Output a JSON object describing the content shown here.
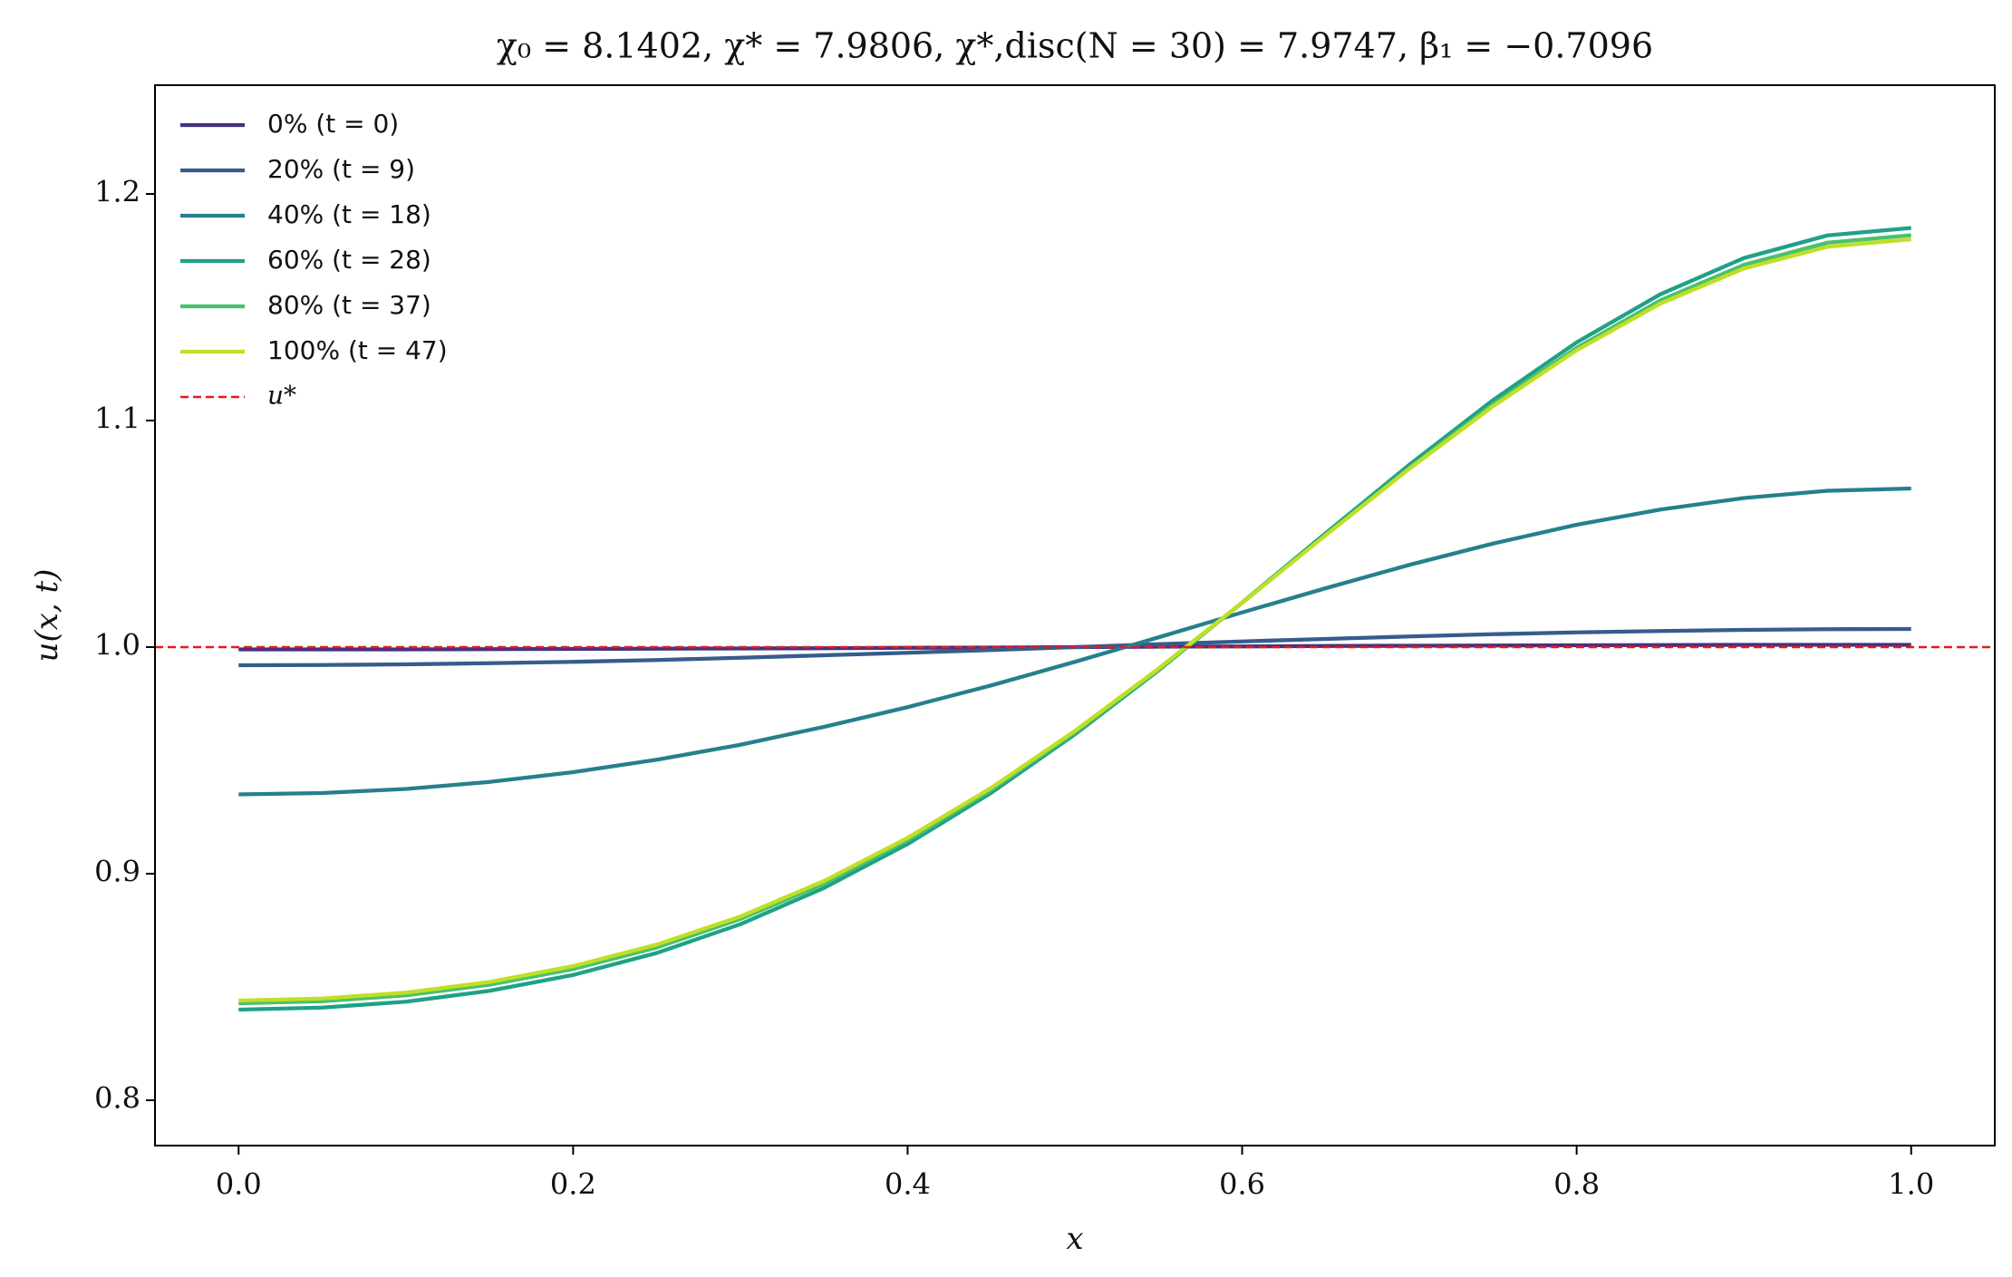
{
  "chart_data": {
    "type": "line",
    "title": "χ₀ = 8.1402,  χ* = 7.9806,  χ*,disc(N = 30) = 7.9747,  β₁ = −0.7096",
    "x_label": "x",
    "y_label": "u(x, t)",
    "x": [
      0,
      0.05,
      0.1,
      0.15,
      0.2,
      0.25,
      0.3,
      0.35,
      0.4,
      0.45,
      0.5,
      0.55,
      0.6,
      0.65,
      0.7,
      0.75,
      0.8,
      0.85,
      0.9,
      0.95,
      1
    ],
    "series": [
      {
        "name": "0% (t = 0)",
        "color": "#46327e",
        "values": [
          0.999,
          0.999,
          0.999,
          0.9991,
          0.9992,
          0.9993,
          0.9994,
          0.9995,
          0.9997,
          0.9998,
          1.0,
          1.0002,
          1.0003,
          1.0005,
          1.0006,
          1.0007,
          1.0008,
          1.0009,
          1.001,
          1.001,
          1.001
        ]
      },
      {
        "name": "20% (t = 9)",
        "color": "#365c8d",
        "values": [
          0.992,
          0.9921,
          0.9924,
          0.9929,
          0.9935,
          0.9943,
          0.9953,
          0.9964,
          0.9975,
          0.9987,
          1.0,
          1.0013,
          1.0025,
          1.0036,
          1.0047,
          1.0057,
          1.0065,
          1.0071,
          1.0076,
          1.0079,
          1.008
        ]
      },
      {
        "name": "40% (t = 18)",
        "color": "#277f8e",
        "values": [
          0.935,
          0.9356,
          0.9374,
          0.9405,
          0.9448,
          0.9503,
          0.9569,
          0.9648,
          0.9735,
          0.9831,
          0.9935,
          1.0043,
          1.0153,
          1.026,
          1.0363,
          1.0457,
          1.054,
          1.0607,
          1.0658,
          1.069,
          1.07
        ]
      },
      {
        "name": "60% (t = 28)",
        "color": "#1fa187",
        "values": [
          0.84,
          0.8409,
          0.8435,
          0.8483,
          0.8553,
          0.865,
          0.8777,
          0.8937,
          0.9131,
          0.9357,
          0.9615,
          0.9897,
          1.0197,
          1.0503,
          1.0805,
          1.109,
          1.1345,
          1.1557,
          1.1717,
          1.1817,
          1.185
        ]
      },
      {
        "name": "80% (t = 37)",
        "color": "#4ac16d",
        "values": [
          0.8428,
          0.8437,
          0.8463,
          0.851,
          0.8579,
          0.8674,
          0.88,
          0.8956,
          0.9147,
          0.937,
          0.9623,
          0.99,
          1.0195,
          1.0496,
          1.0792,
          1.1072,
          1.1321,
          1.153,
          1.1687,
          1.1785,
          1.1818
        ]
      },
      {
        "name": "100% (t = 47)",
        "color": "#c0df25",
        "values": [
          0.844,
          0.8449,
          0.8475,
          0.8522,
          0.8592,
          0.8687,
          0.8811,
          0.8968,
          0.9158,
          0.9379,
          0.963,
          0.9905,
          1.0196,
          1.0494,
          1.0787,
          1.1063,
          1.131,
          1.1516,
          1.1671,
          1.1767,
          1.18
        ]
      }
    ],
    "reference_line": {
      "name": "u*",
      "value": 1,
      "color": "#e41a1c",
      "dashed": true
    },
    "xlim": [
      -0.05,
      1.05
    ],
    "ylim": [
      0.78,
      1.248
    ],
    "xticks": [
      {
        "value": 0,
        "label": "0.0"
      },
      0.2,
      0.4,
      0.6,
      0.8,
      {
        "value": 1,
        "label": "1.0"
      }
    ],
    "yticks": [
      0.8,
      0.9,
      {
        "value": 1,
        "label": "1.0"
      },
      1.1,
      1.2
    ],
    "grid": false,
    "legend": "upper left"
  }
}
